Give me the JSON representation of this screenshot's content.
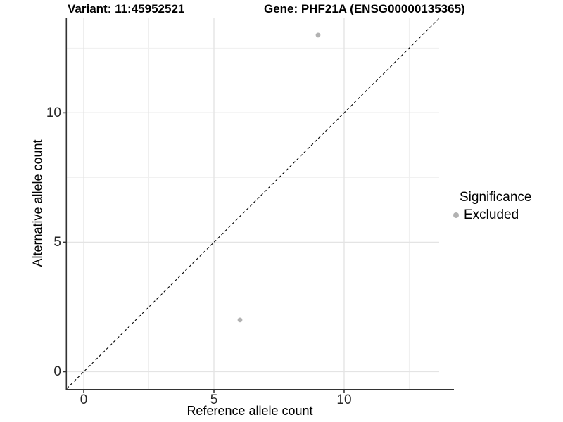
{
  "titles": {
    "variant": "Variant: 11:45952521",
    "gene": "Gene: PHF21A (ENSG00000135365)"
  },
  "axes": {
    "x_label": "Reference allele count",
    "y_label": "Alternative allele count"
  },
  "legend": {
    "title": "Significance",
    "items": [
      {
        "label": "Excluded",
        "color": "#b2b2b2"
      }
    ]
  },
  "chart_data": {
    "type": "scatter",
    "title": "Variant: 11:45952521    Gene: PHF21A (ENSG00000135365)",
    "xlabel": "Reference allele count",
    "ylabel": "Alternative allele count",
    "points": [
      {
        "x": 6,
        "y": 2,
        "series": "Excluded"
      },
      {
        "x": 9,
        "y": 13,
        "series": "Excluded"
      }
    ],
    "series_color": "#b2b2b2",
    "xlim": [
      -0.65,
      13.65
    ],
    "ylim": [
      -0.68,
      13.65
    ],
    "x_major_ticks": [
      0,
      5,
      10
    ],
    "y_major_ticks": [
      0,
      5,
      10
    ],
    "x_minor_gridlines": [
      2.5,
      7.5,
      12.5
    ],
    "y_minor_gridlines": [
      2.5,
      7.5,
      12.5
    ],
    "reference_line": {
      "slope": 1,
      "intercept": 0,
      "style": "dashed",
      "color": "#000000"
    },
    "grid": true,
    "legend_position": "right",
    "colors": {
      "major_grid": "#e4e4e4",
      "minor_grid": "#efefef",
      "axis_line": "#333333",
      "tick_text": "#262626"
    }
  }
}
